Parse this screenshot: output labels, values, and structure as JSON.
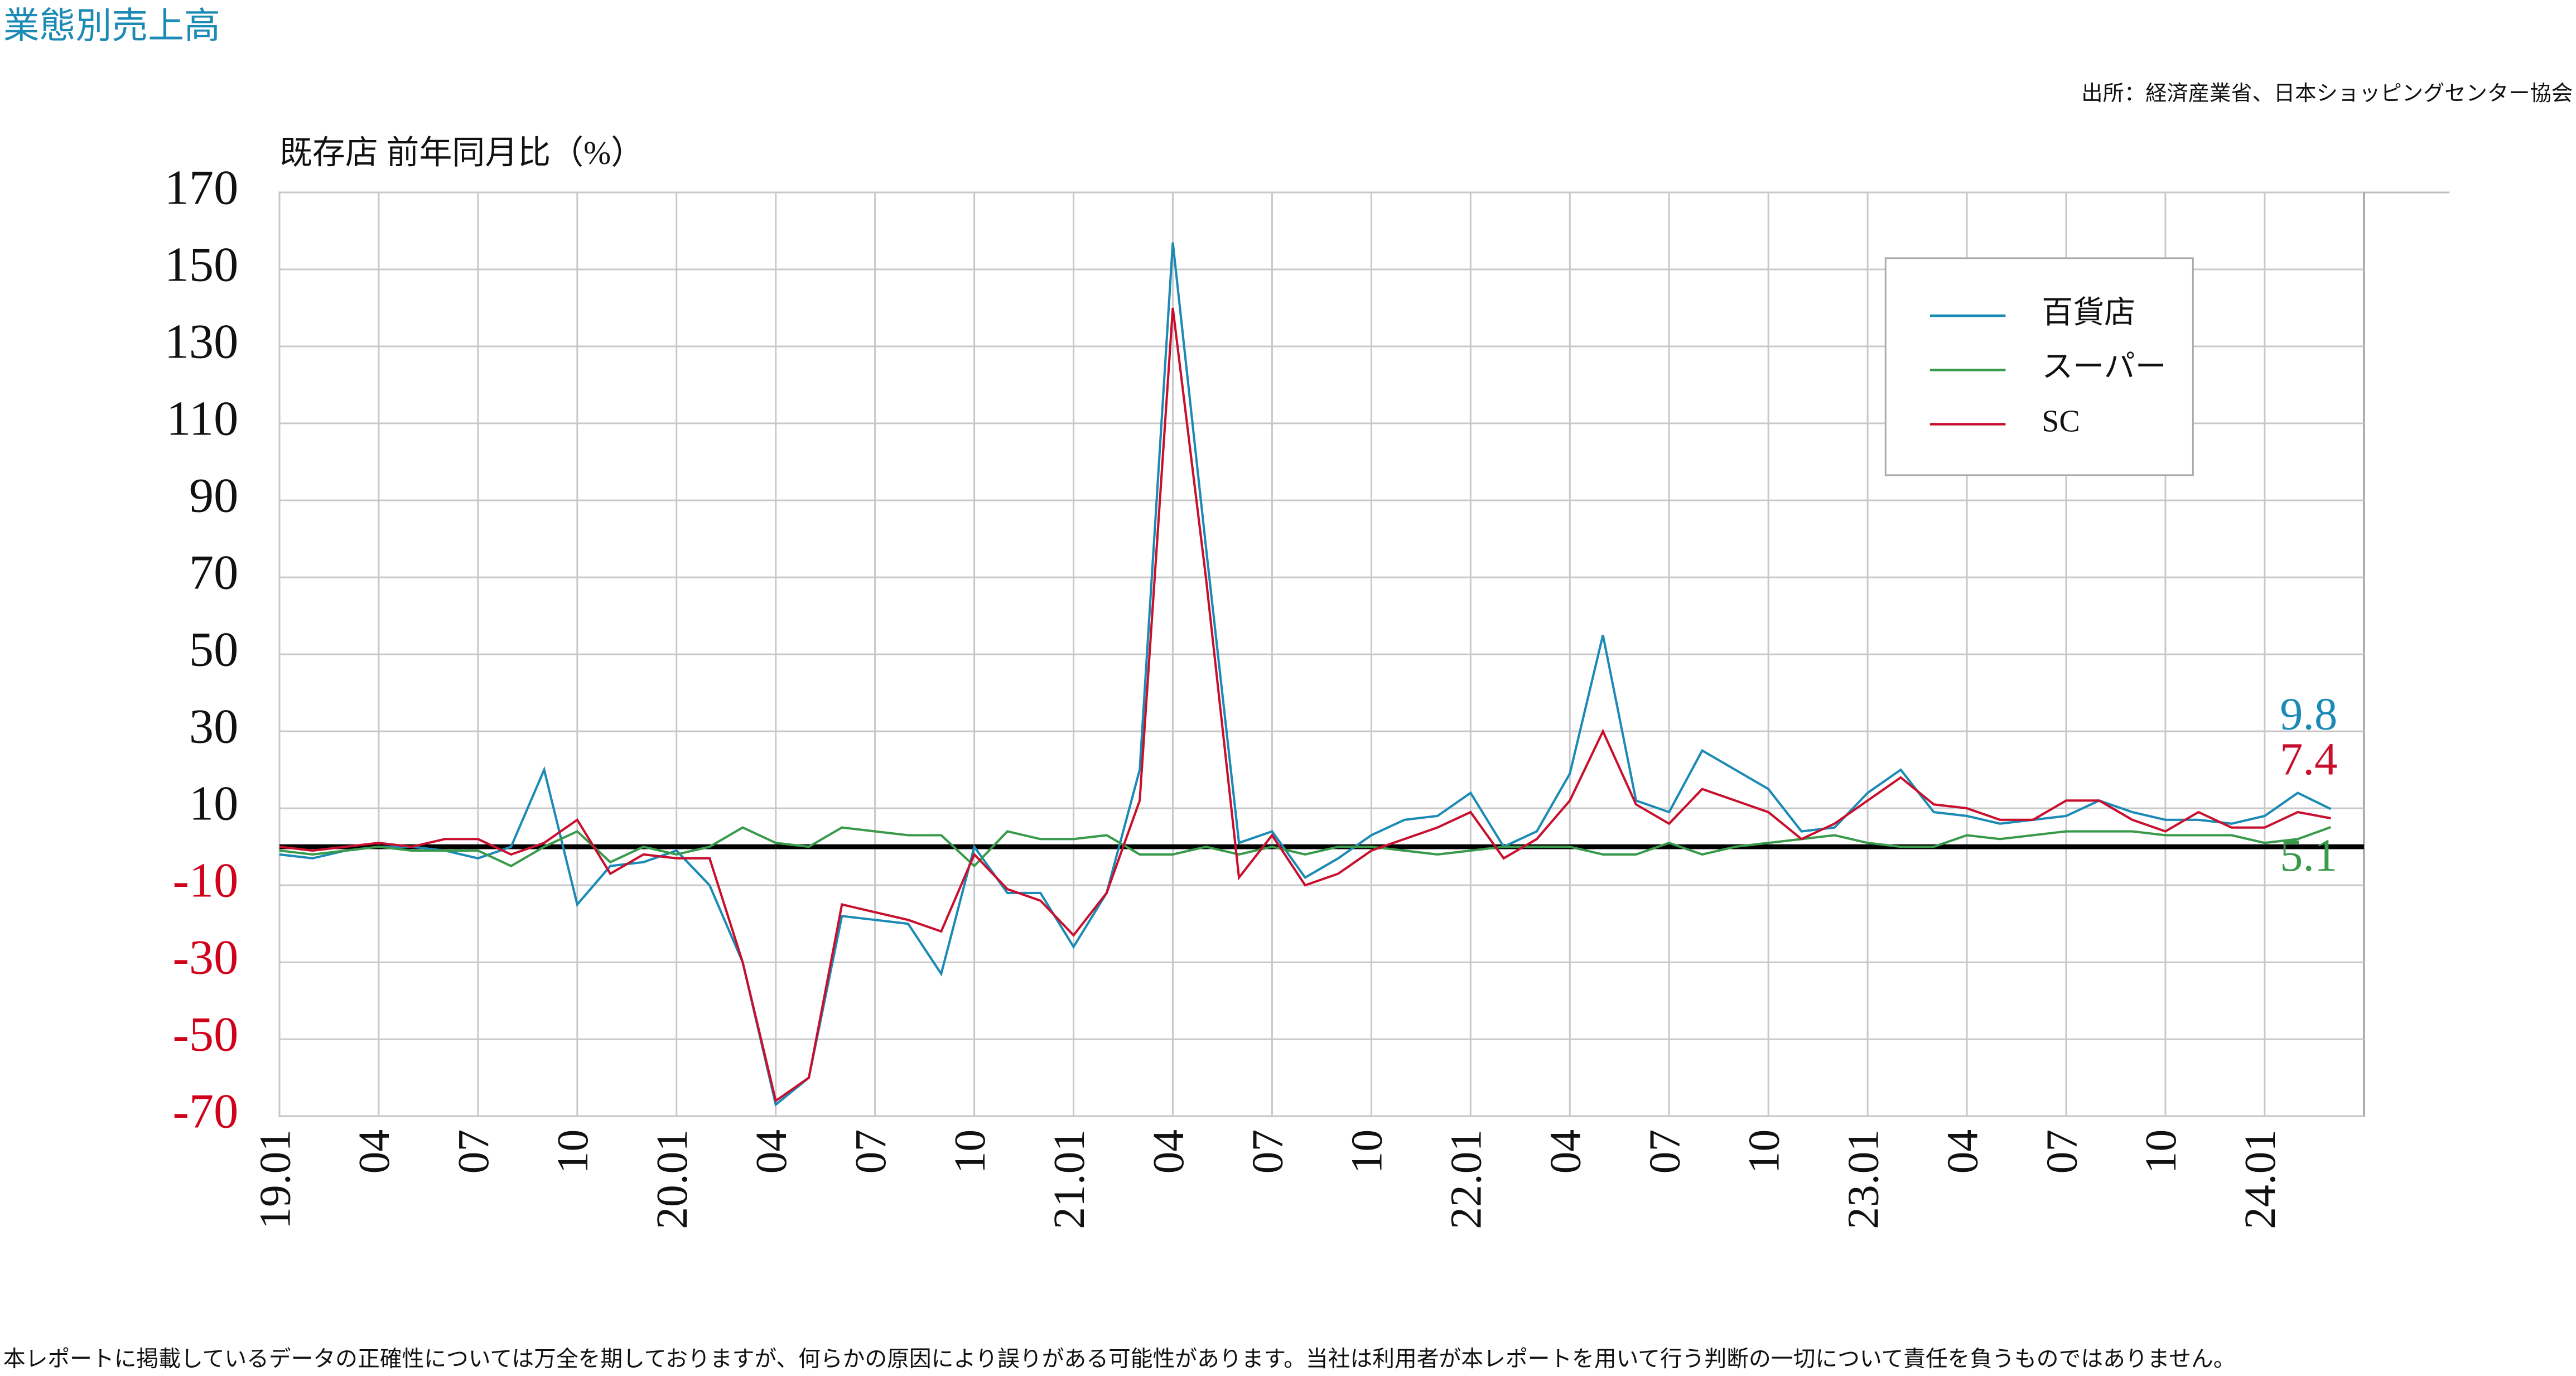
{
  "header": {
    "title": "業態別売上高",
    "source": "出所：経済産業省、日本ショッピングセンター協会"
  },
  "chart_data": {
    "type": "line",
    "y_label": "既存店 前年同月比（%）",
    "categories": [
      "19.01",
      null,
      null,
      "04",
      null,
      null,
      "07",
      null,
      null,
      "10",
      null,
      null,
      "20.01",
      null,
      null,
      "04",
      null,
      null,
      "07",
      null,
      null,
      "10",
      null,
      null,
      "21.01",
      null,
      null,
      "04",
      null,
      null,
      "07",
      null,
      null,
      "10",
      null,
      null,
      "22.01",
      null,
      null,
      "04",
      null,
      null,
      "07",
      null,
      null,
      "10",
      null,
      null,
      "23.01",
      null,
      null,
      "04",
      null,
      null,
      "07",
      null,
      null,
      "10",
      null,
      null,
      "24.01",
      null,
      null
    ],
    "series": [
      {
        "name": "百貨店",
        "color": "#1b8ab5",
        "values": [
          -2,
          -3,
          -1,
          0,
          0,
          -1,
          -3,
          0,
          20,
          -15,
          -5,
          -4,
          -1,
          -10,
          -30,
          -67,
          -60,
          -18,
          -19,
          -20,
          -33,
          0,
          -12,
          -12,
          -26,
          -12,
          20,
          157,
          78,
          1,
          4,
          -8,
          -3,
          3,
          7,
          8,
          14,
          0,
          4,
          19,
          55,
          12,
          9,
          25,
          20,
          15,
          4,
          5,
          14,
          20,
          9,
          8,
          6,
          7,
          8,
          12,
          9,
          7,
          7,
          6,
          8,
          14,
          9.8
        ]
      },
      {
        "name": "スーパー",
        "color": "#3a9a4c",
        "values": [
          -1,
          -2,
          -1,
          0,
          -1,
          -1,
          -1,
          -5,
          0,
          4,
          -4,
          0,
          -2,
          0,
          5,
          1,
          0,
          5,
          4,
          3,
          3,
          -5,
          4,
          2,
          2,
          3,
          -2,
          -2,
          0,
          -2,
          0,
          -2,
          0,
          0,
          -1,
          -2,
          -1,
          0,
          0,
          0,
          -2,
          -2,
          1,
          -2,
          0,
          1,
          2,
          3,
          1,
          0,
          0,
          3,
          2,
          3,
          4,
          4,
          4,
          3,
          3,
          3,
          1,
          2,
          5.1
        ]
      },
      {
        "name": "SC",
        "color": "#c8102e",
        "values": [
          0,
          -1,
          0,
          1,
          0,
          2,
          2,
          -2,
          1,
          7,
          -7,
          -2,
          -3,
          -3,
          -30,
          -66,
          -60,
          -15,
          -17,
          -19,
          -22,
          -2,
          -11,
          -14,
          -23,
          -12,
          12,
          140,
          70,
          -8,
          3,
          -10,
          -7,
          -1,
          2,
          5,
          9,
          -3,
          2,
          12,
          30,
          11,
          6,
          15,
          12,
          9,
          2,
          6,
          12,
          18,
          11,
          10,
          7,
          7,
          12,
          12,
          7,
          4,
          9,
          5,
          5,
          9,
          7.4
        ]
      }
    ],
    "ylim": [
      -70,
      170
    ],
    "yticks": [
      -70,
      -50,
      -30,
      -10,
      10,
      30,
      50,
      70,
      90,
      110,
      130,
      150,
      170
    ],
    "negative_tick_color": "#d0021b",
    "grid": true,
    "legend": "upper right"
  },
  "footnote": "本レポートに掲載しているデータの正確性については万全を期しておりますが、何らかの原因により誤りがある可能性があります。当社は利用者が本レポートを用いて行う判断の一切について責任を負うものではありません。"
}
